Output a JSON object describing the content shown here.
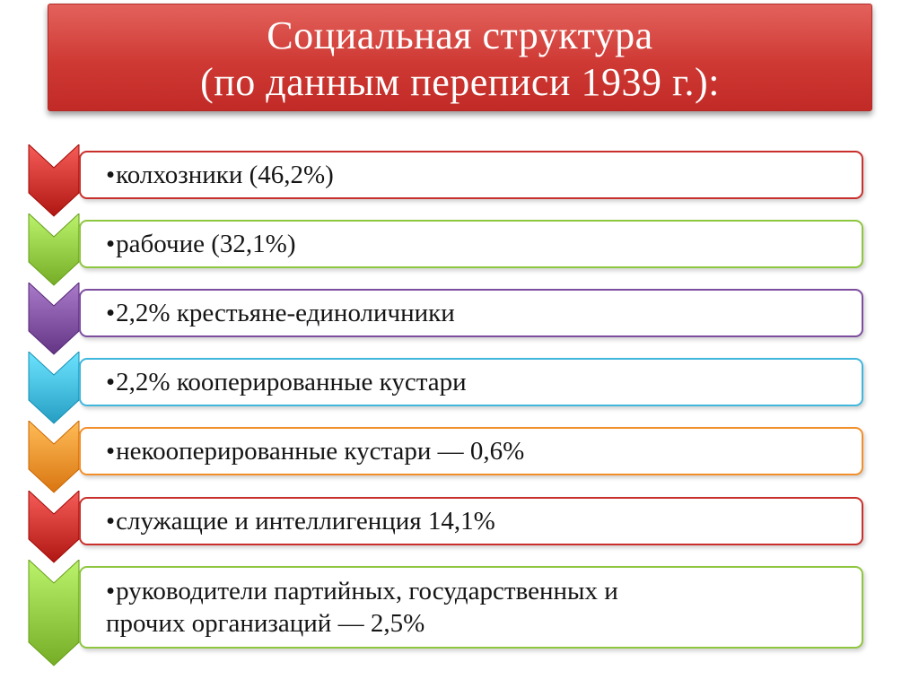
{
  "title": {
    "line1": "Социальная структура",
    "line2": "(по данным переписи 1939 г.):"
  },
  "items": [
    {
      "bullet": "•",
      "text": "колхозники (46,2%)",
      "text2": "",
      "color": "#c9302c",
      "icon": "chevron-down-red-icon"
    },
    {
      "bullet": "•",
      "text": "рабочие (32,1%)",
      "text2": "",
      "color": "#8ec63f",
      "icon": "chevron-down-green-icon"
    },
    {
      "bullet": "•",
      "text": "2,2% крестьяне-единоличники",
      "text2": "",
      "color": "#7d4e9e",
      "icon": "chevron-down-purple-icon"
    },
    {
      "bullet": "•",
      "text": "2,2%  кооперированные кустари",
      "text2": "",
      "color": "#3fb7dc",
      "icon": "chevron-down-blue-icon"
    },
    {
      "bullet": "•",
      "text": "некооперированные кустари — 0,6%",
      "text2": "",
      "color": "#f28f2a",
      "icon": "chevron-down-orange-icon"
    },
    {
      "bullet": "•",
      "text": "служащие и интеллигенция 14,1%",
      "text2": "",
      "color": "#c9302c",
      "icon": "chevron-down-red-icon"
    },
    {
      "bullet": "•",
      "text": "руководители партийных, государственных и",
      "text2": "прочих организаций — 2,5%",
      "color": "#8ec63f",
      "icon": "chevron-down-green-icon"
    }
  ]
}
